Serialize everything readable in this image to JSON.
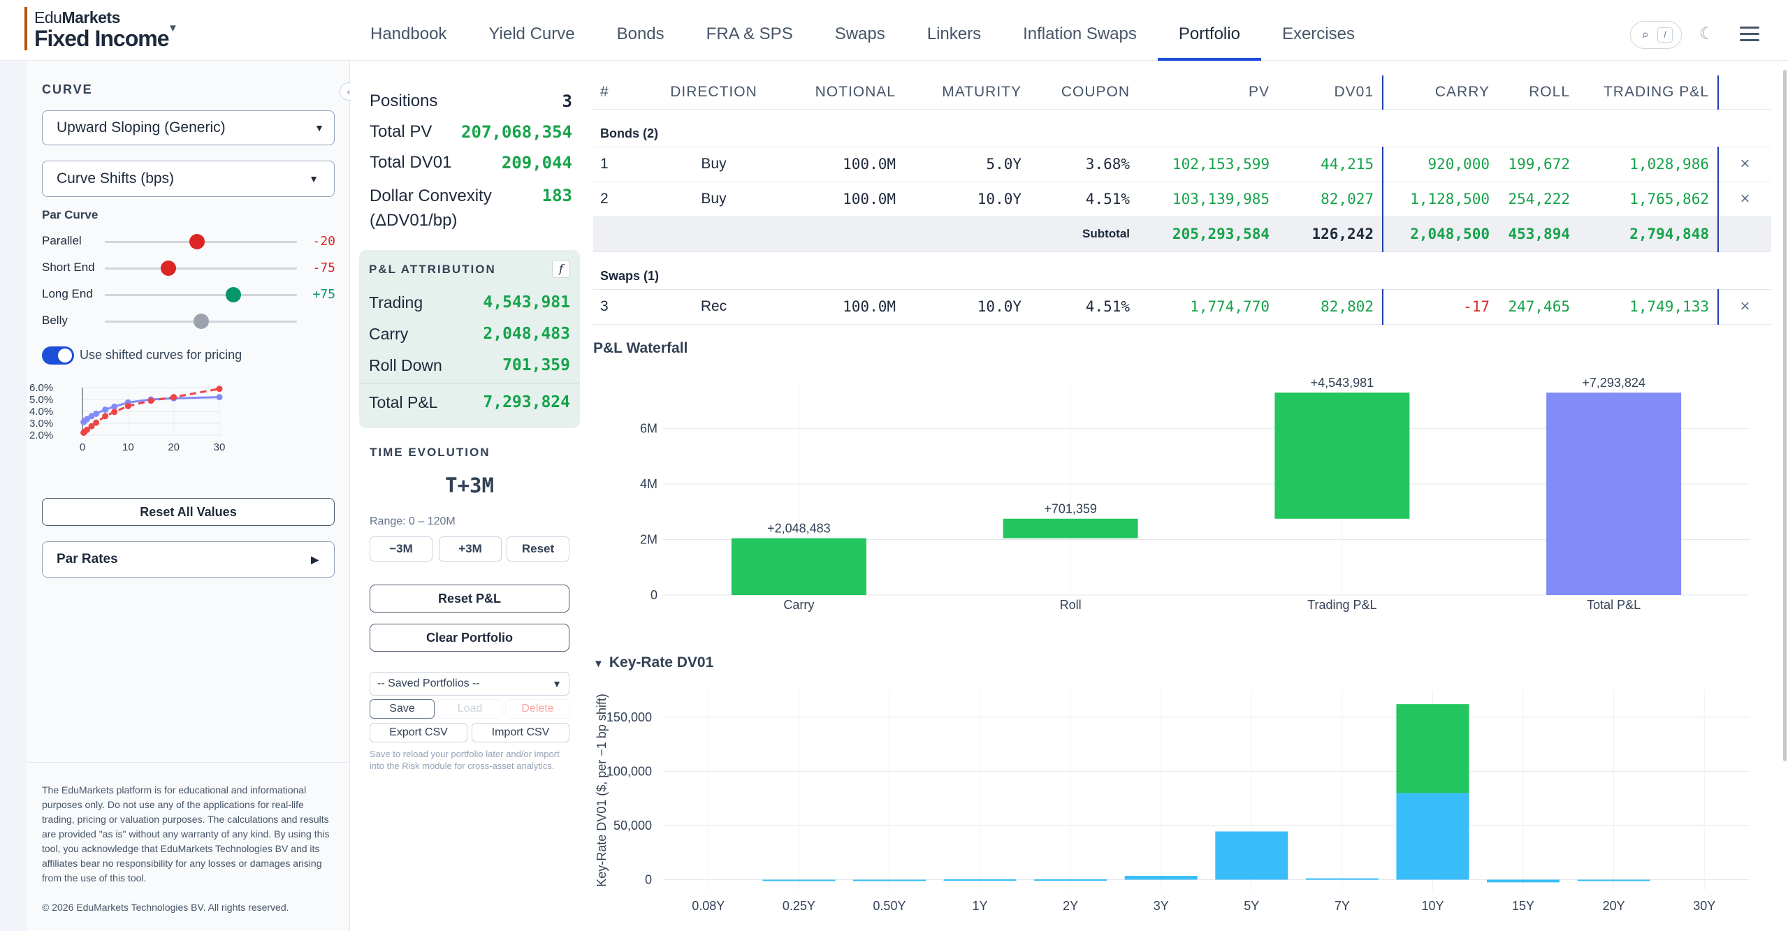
{
  "header": {
    "brand_line1a": "Edu",
    "brand_line1b": "Markets",
    "brand_line2": "Fixed Income",
    "nav": [
      "Handbook",
      "Yield Curve",
      "Bonds",
      "FRA & SPS",
      "Swaps",
      "Linkers",
      "Inflation Swaps",
      "Portfolio",
      "Exercises"
    ],
    "active_tab": "Portfolio",
    "search_key": "/"
  },
  "sidebar": {
    "curve_title": "CURVE",
    "curve_select": "Upward Sloping (Generic)",
    "shifts_title": "Curve Shifts (bps)",
    "par_curve_label": "Par Curve",
    "sliders": [
      {
        "label": "Parallel",
        "value": "-20",
        "fraction": 0.48,
        "color": "#dc2626"
      },
      {
        "label": "Short End",
        "value": "-75",
        "fraction": 0.33,
        "color": "#dc2626"
      },
      {
        "label": "Long End",
        "value": "+75",
        "fraction": 0.67,
        "color": "#059669"
      },
      {
        "label": "Belly",
        "value": "",
        "fraction": 0.5,
        "color": "#9ca3af"
      }
    ],
    "toggle_label": "Use shifted curves for pricing",
    "toggle_on": true,
    "mini_chart": {
      "y_ticks": [
        "6.0%",
        "5.0%",
        "4.0%",
        "3.0%",
        "2.0%"
      ],
      "x_ticks": [
        "0",
        "10",
        "20",
        "30"
      ],
      "base": [
        [
          0.25,
          3.1
        ],
        [
          0.5,
          3.2
        ],
        [
          1,
          3.35
        ],
        [
          2,
          3.6
        ],
        [
          3,
          3.8
        ],
        [
          5,
          4.15
        ],
        [
          7,
          4.4
        ],
        [
          10,
          4.75
        ],
        [
          15,
          5.0
        ],
        [
          20,
          5.1
        ],
        [
          30,
          5.2
        ]
      ],
      "shifted": [
        [
          0.25,
          2.2
        ],
        [
          0.5,
          2.3
        ],
        [
          1,
          2.45
        ],
        [
          2,
          2.75
        ],
        [
          3,
          3.05
        ],
        [
          5,
          3.6
        ],
        [
          7,
          3.95
        ],
        [
          10,
          4.45
        ],
        [
          15,
          4.9
        ],
        [
          20,
          5.2
        ],
        [
          30,
          5.9
        ]
      ]
    },
    "reset_all": "Reset All Values",
    "par_rates": "Par Rates",
    "disclaimer": "The EduMarkets platform is for educational and informational purposes only. Do not use any of the applications for real-life trading, pricing or valuation purposes. The calculations and results are provided \"as is\" without any warranty of any kind. By using this tool, you acknowledge that EduMarkets Technologies BV and its affiliates bear no responsibility for any losses or damages arising from the use of this tool.",
    "copyright": "© 2026 EduMarkets Technologies BV. All rights reserved."
  },
  "summary": {
    "positions_label": "Positions",
    "positions": "3",
    "pv_label": "Total PV",
    "pv": "207,068,354",
    "dv01_label": "Total DV01",
    "dv01": "209,044",
    "conv_label1": "Dollar Convexity",
    "conv_label2": "(ΔDV01/bp)",
    "conv": "183",
    "pla_title": "P&L ATTRIBUTION",
    "pla_icon": "f",
    "pla_rows": [
      {
        "label": "Trading",
        "value": "4,543,981"
      },
      {
        "label": "Carry",
        "value": "2,048,483"
      },
      {
        "label": "Roll Down",
        "value": "701,359"
      }
    ],
    "pla_total_label": "Total P&L",
    "pla_total": "7,293,824",
    "time_title": "TIME EVOLUTION",
    "time_value": "T+3M",
    "range": "Range: 0 – 120M",
    "btn_minus": "−3M",
    "btn_plus": "+3M",
    "btn_reset": "Reset",
    "reset_pl": "Reset P&L",
    "clear_portfolio": "Clear Portfolio",
    "saved_select": "-- Saved Portfolios --",
    "save": "Save",
    "load": "Load",
    "delete": "Delete",
    "export_csv": "Export CSV",
    "import_csv": "Import CSV",
    "save_note": "Save to reload your portfolio later and/or import into the Risk module for cross-asset analytics."
  },
  "table": {
    "headers": [
      "#",
      "DIRECTION",
      "NOTIONAL",
      "MATURITY",
      "COUPON",
      "PV",
      "DV01",
      "CARRY",
      "ROLL",
      "TRADING P&L"
    ],
    "bonds_group": "Bonds (2)",
    "bonds": [
      {
        "n": "1",
        "dir": "Buy",
        "notional": "100.0M",
        "mat": "5.0Y",
        "cpn": "3.68%",
        "pv": "102,153,599",
        "dv01": "44,215",
        "carry": "920,000",
        "roll": "199,672",
        "tpl": "1,028,986"
      },
      {
        "n": "2",
        "dir": "Buy",
        "notional": "100.0M",
        "mat": "10.0Y",
        "cpn": "4.51%",
        "pv": "103,139,985",
        "dv01": "82,027",
        "carry": "1,128,500",
        "roll": "254,222",
        "tpl": "1,765,862"
      }
    ],
    "subtotal": {
      "label": "Subtotal",
      "pv": "205,293,584",
      "dv01": "126,242",
      "carry": "2,048,500",
      "roll": "453,894",
      "tpl": "2,794,848"
    },
    "swaps_group": "Swaps (1)",
    "swaps": [
      {
        "n": "3",
        "dir": "Rec",
        "notional": "100.0M",
        "mat": "10.0Y",
        "cpn": "4.51%",
        "pv": "1,774,770",
        "dv01": "82,802",
        "carry": "-17",
        "roll": "247,465",
        "tpl": "1,749,133"
      }
    ],
    "remove_icon": "×"
  },
  "waterfall": {
    "title": "P&L Waterfall",
    "chart_data": {
      "type": "bar",
      "categories": [
        "Carry",
        "Roll",
        "Trading P&L",
        "Total P&L"
      ],
      "bases": [
        0,
        2048483,
        2749842,
        0
      ],
      "values": [
        2048483,
        701359,
        4543981,
        7293824
      ],
      "labels": [
        "+2,048,483",
        "+701,359",
        "+4,543,981",
        "+7,293,824"
      ],
      "colors": [
        "#22c55e",
        "#22c55e",
        "#22c55e",
        "#818cf8"
      ],
      "y_ticks": [
        0,
        2000000,
        4000000,
        6000000
      ],
      "y_tick_labels": [
        "0",
        "2M",
        "4M",
        "6M"
      ],
      "ylim": [
        0,
        7600000
      ]
    }
  },
  "krd": {
    "title": "Key-Rate DV01",
    "chart_data": {
      "type": "bar",
      "categories": [
        "0.08Y",
        "0.25Y",
        "0.50Y",
        "1Y",
        "2Y",
        "3Y",
        "5Y",
        "7Y",
        "10Y",
        "15Y",
        "20Y",
        "30Y"
      ],
      "series": [
        {
          "values": [
            0,
            -300,
            -300,
            300,
            300,
            3500,
            44500,
            1200,
            80000,
            -2500,
            -300,
            0
          ],
          "color": "#38bdf8"
        },
        {
          "values": [
            0,
            0,
            0,
            0,
            0,
            0,
            0,
            0,
            82000,
            0,
            0,
            0
          ],
          "color": "#22c55e"
        }
      ],
      "ylabel": "Key-Rate DV01 ($, per −1 bp shift)",
      "y_ticks": [
        0,
        50000,
        100000,
        150000
      ],
      "y_tick_labels": [
        "0",
        "50,000",
        "100,000",
        "150,000"
      ],
      "ylim": [
        -10000,
        175000
      ]
    }
  }
}
